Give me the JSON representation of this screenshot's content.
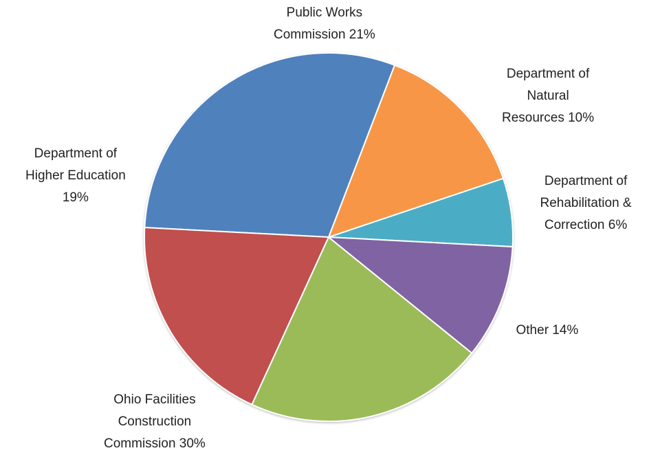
{
  "chart_data": {
    "type": "pie",
    "title": "",
    "slices": [
      {
        "category": "Department of Rehabilitation & Correction",
        "value": 6,
        "color": "#4BACC6",
        "label_lines": [
          "Department of",
          "Rehabilitation &",
          "Correction 6%"
        ]
      },
      {
        "category": "Other",
        "value": 14,
        "color": "#F79646",
        "label_lines": [
          "Other 14%"
        ]
      },
      {
        "category": "Ohio Facilities Construction Commission",
        "value": 30,
        "color": "#4F81BD",
        "label_lines": [
          "Ohio Facilities",
          "Construction",
          "Commission  30%"
        ]
      },
      {
        "category": "Department of Higher Education",
        "value": 19,
        "color": "#C0504D",
        "label_lines": [
          "Department of",
          "Higher Education",
          "19%"
        ]
      },
      {
        "category": "Public Works Commission",
        "value": 21,
        "color": "#9BBB59",
        "label_lines": [
          "Public Works",
          "Commission  21%"
        ]
      },
      {
        "category": "Department of Natural Resources",
        "value": 10,
        "color": "#8064A2",
        "label_lines": [
          "Department of",
          "Natural",
          "Resources 10%"
        ]
      }
    ],
    "legend": "none",
    "data_labels": "outside"
  }
}
